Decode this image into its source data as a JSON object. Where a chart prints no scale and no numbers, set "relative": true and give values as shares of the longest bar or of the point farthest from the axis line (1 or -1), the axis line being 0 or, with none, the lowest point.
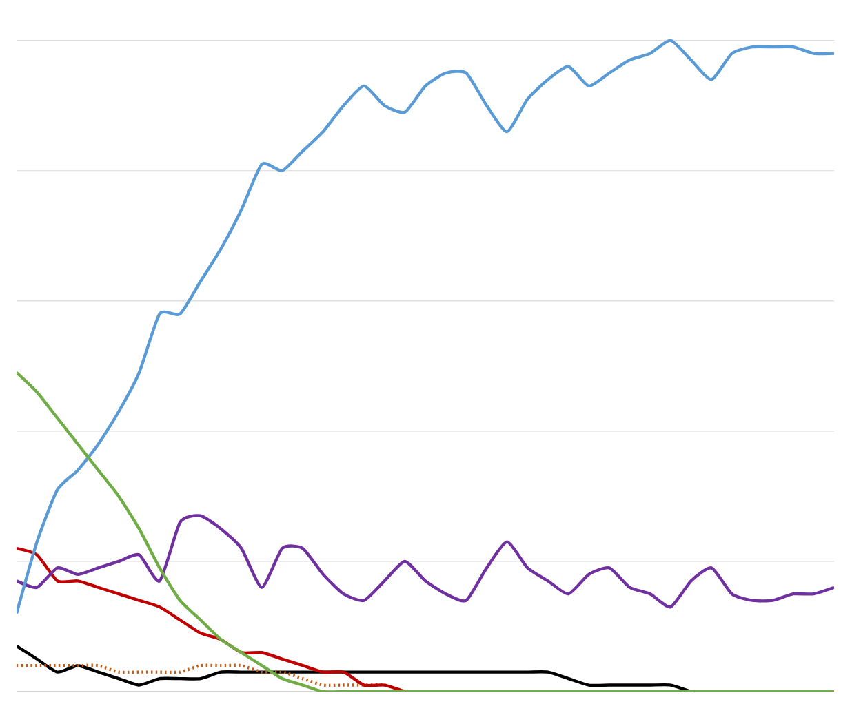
{
  "chart_data": {
    "type": "line",
    "relative": true,
    "grid": "y",
    "categories": [
      null,
      null,
      null,
      null,
      null,
      null,
      null,
      null,
      null,
      null,
      null,
      null,
      null,
      null,
      null,
      null,
      null,
      null,
      null,
      null,
      null,
      null,
      null,
      null,
      null,
      null,
      null,
      null,
      null,
      null,
      null,
      null,
      null,
      null,
      null,
      null,
      null,
      null,
      null,
      null,
      null
    ],
    "series": [
      {
        "color": "#000000",
        "values": [
          0.07,
          0.05,
          0.03,
          0.04,
          0.03,
          0.02,
          0.01,
          0.02,
          0.02,
          0.02,
          0.03,
          0.03,
          0.03,
          0.03,
          0.03,
          0.03,
          0.03,
          0.03,
          0.03,
          0.03,
          0.03,
          0.03,
          0.03,
          0.03,
          0.03,
          0.03,
          0.03,
          0.02,
          0.01,
          0.01,
          0.01,
          0.01,
          0.01,
          0,
          null,
          null,
          null,
          null,
          null,
          null,
          null
        ]
      },
      {
        "color": "#c55a11",
        "line_style": "dotted",
        "values": [
          0.04,
          0.04,
          0.04,
          0.04,
          0.04,
          0.03,
          0.03,
          0.03,
          0.03,
          0.04,
          0.04,
          0.04,
          0.03,
          0.03,
          0.02,
          0.01,
          0.01,
          0.01,
          0.01,
          0,
          null,
          null,
          null,
          null,
          null,
          null,
          null,
          null,
          null,
          null,
          null,
          null,
          null,
          null,
          null,
          null,
          null,
          null,
          null,
          null,
          null
        ]
      },
      {
        "color": "#c00000",
        "values": [
          0.22,
          0.21,
          0.17,
          0.17,
          0.16,
          0.15,
          0.14,
          0.13,
          0.11,
          0.09,
          0.08,
          0.06,
          0.06,
          0.05,
          0.04,
          0.03,
          0.03,
          0.01,
          0.01,
          0,
          null,
          null,
          null,
          null,
          null,
          null,
          null,
          null,
          null,
          null,
          null,
          null,
          null,
          null,
          null,
          null,
          null,
          null,
          null,
          null,
          null
        ]
      },
      {
        "color": "#7030a0",
        "values": [
          0.17,
          0.16,
          0.19,
          0.18,
          0.19,
          0.2,
          0.21,
          0.17,
          0.26,
          0.27,
          0.25,
          0.22,
          0.16,
          0.22,
          0.22,
          0.18,
          0.15,
          0.14,
          0.17,
          0.2,
          0.17,
          0.15,
          0.14,
          0.19,
          0.23,
          0.19,
          0.17,
          0.15,
          0.18,
          0.19,
          0.16,
          0.15,
          0.13,
          0.17,
          0.19,
          0.15,
          0.14,
          0.14,
          0.15,
          0.15,
          0.16
        ]
      },
      {
        "color": "#5b9bd5",
        "values": [
          0.12,
          0.23,
          0.31,
          0.34,
          0.38,
          0.43,
          0.49,
          0.58,
          0.58,
          0.63,
          0.68,
          0.74,
          0.81,
          0.8,
          0.83,
          0.86,
          0.9,
          0.93,
          0.9,
          0.89,
          0.93,
          0.95,
          0.95,
          0.9,
          0.86,
          0.91,
          0.94,
          0.96,
          0.93,
          0.95,
          0.97,
          0.98,
          1.0,
          0.97,
          0.94,
          0.98,
          0.99,
          0.99,
          0.99,
          0.98,
          0.98
        ]
      },
      {
        "color": "#70ad47",
        "values": [
          0.49,
          0.46,
          0.42,
          0.38,
          0.34,
          0.3,
          0.25,
          0.19,
          0.14,
          0.11,
          0.08,
          0.06,
          0.04,
          0.02,
          0.01,
          0,
          0,
          0,
          0,
          0,
          0,
          0,
          0,
          0,
          0,
          0,
          0,
          0,
          0,
          0,
          0,
          0,
          0,
          0,
          0,
          0,
          0,
          0,
          0,
          0,
          0
        ]
      }
    ]
  }
}
